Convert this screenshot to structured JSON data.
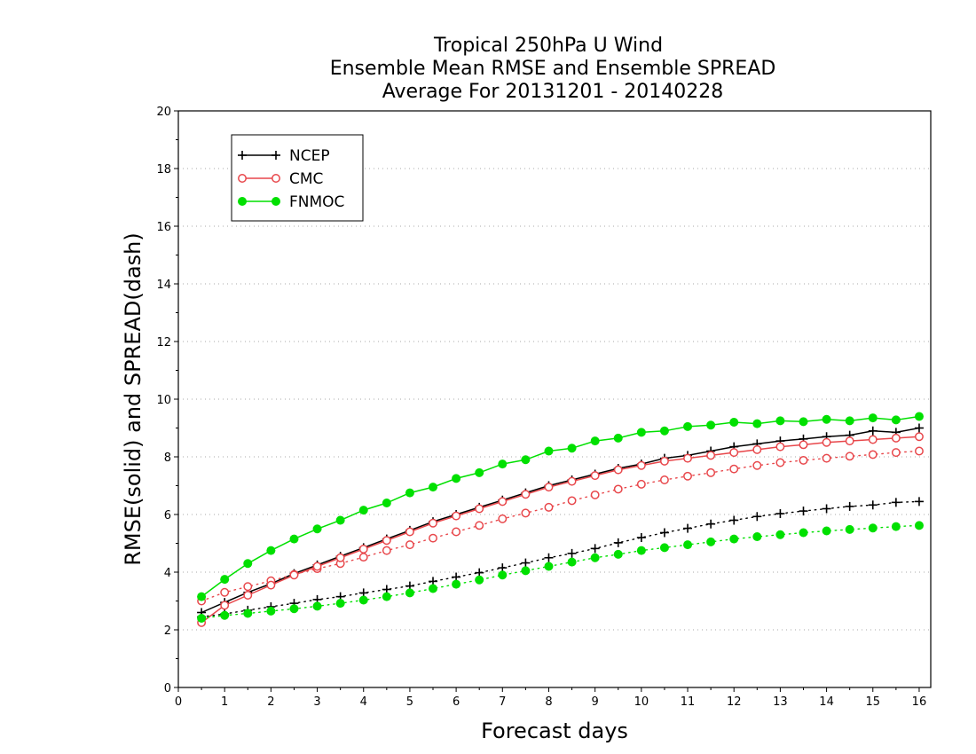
{
  "chart_data": {
    "type": "line",
    "title": [
      "Tropical 250hPa U Wind",
      "Ensemble Mean RMSE and Ensemble SPREAD",
      "Average For 20131201 - 20140228"
    ],
    "xlabel": "Forecast days",
    "ylabel": "RMSE(solid) and SPREAD(dash)",
    "xlim": [
      0,
      16.25
    ],
    "ylim": [
      0,
      20
    ],
    "xticks": [
      "0",
      "1",
      "2",
      "3",
      "4",
      "5",
      "6",
      "7",
      "8",
      "9",
      "10",
      "11",
      "12",
      "13",
      "14",
      "15",
      "16"
    ],
    "yticks": [
      "0",
      "2",
      "4",
      "6",
      "8",
      "10",
      "12",
      "14",
      "16",
      "18",
      "20"
    ],
    "grid": "horizontal dotted",
    "legend_position": "top-left",
    "x": [
      0.5,
      1,
      1.5,
      2,
      2.5,
      3,
      3.5,
      4,
      4.5,
      5,
      5.5,
      6,
      6.5,
      7,
      7.5,
      8,
      8.5,
      9,
      9.5,
      10,
      10.5,
      11,
      11.5,
      12,
      12.5,
      13,
      13.5,
      14,
      14.5,
      15,
      15.5,
      16
    ],
    "series": [
      {
        "name": "NCEP",
        "color": "#000000",
        "marker": "plus",
        "rmse": [
          2.6,
          2.95,
          3.3,
          3.6,
          3.95,
          4.25,
          4.55,
          4.85,
          5.15,
          5.45,
          5.75,
          6.0,
          6.25,
          6.5,
          6.75,
          7.0,
          7.2,
          7.4,
          7.6,
          7.75,
          7.95,
          8.05,
          8.2,
          8.35,
          8.45,
          8.55,
          8.62,
          8.7,
          8.75,
          8.9,
          8.85,
          9.0
        ],
        "spread": [
          2.45,
          2.55,
          2.68,
          2.8,
          2.92,
          3.05,
          3.15,
          3.28,
          3.4,
          3.52,
          3.68,
          3.83,
          3.98,
          4.15,
          4.32,
          4.5,
          4.65,
          4.82,
          5.02,
          5.2,
          5.37,
          5.52,
          5.67,
          5.8,
          5.93,
          6.03,
          6.12,
          6.2,
          6.28,
          6.33,
          6.42,
          6.45
        ]
      },
      {
        "name": "CMC",
        "color": "#e8474b",
        "marker": "circle-open",
        "rmse": [
          2.25,
          2.85,
          3.2,
          3.55,
          3.9,
          4.2,
          4.5,
          4.8,
          5.1,
          5.4,
          5.7,
          5.95,
          6.2,
          6.45,
          6.7,
          6.95,
          7.15,
          7.35,
          7.55,
          7.7,
          7.85,
          7.95,
          8.05,
          8.15,
          8.25,
          8.35,
          8.42,
          8.5,
          8.55,
          8.6,
          8.65,
          8.7
        ],
        "spread": [
          3.0,
          3.3,
          3.5,
          3.7,
          3.92,
          4.12,
          4.3,
          4.52,
          4.75,
          4.95,
          5.18,
          5.4,
          5.62,
          5.85,
          6.05,
          6.25,
          6.48,
          6.68,
          6.88,
          7.05,
          7.2,
          7.33,
          7.45,
          7.58,
          7.7,
          7.8,
          7.88,
          7.95,
          8.02,
          8.08,
          8.15,
          8.2
        ]
      },
      {
        "name": "FNMOC",
        "color": "#00e000",
        "marker": "circle-filled",
        "rmse": [
          3.15,
          3.75,
          4.3,
          4.75,
          5.15,
          5.5,
          5.8,
          6.15,
          6.4,
          6.75,
          6.95,
          7.25,
          7.45,
          7.75,
          7.9,
          8.2,
          8.3,
          8.55,
          8.65,
          8.85,
          8.9,
          9.05,
          9.1,
          9.2,
          9.15,
          9.25,
          9.22,
          9.3,
          9.25,
          9.35,
          9.28,
          9.4
        ],
        "spread": [
          2.4,
          2.5,
          2.57,
          2.65,
          2.73,
          2.82,
          2.92,
          3.03,
          3.15,
          3.28,
          3.43,
          3.58,
          3.73,
          3.9,
          4.05,
          4.2,
          4.35,
          4.5,
          4.62,
          4.75,
          4.85,
          4.95,
          5.05,
          5.15,
          5.23,
          5.3,
          5.37,
          5.43,
          5.48,
          5.53,
          5.58,
          5.62
        ]
      }
    ]
  }
}
